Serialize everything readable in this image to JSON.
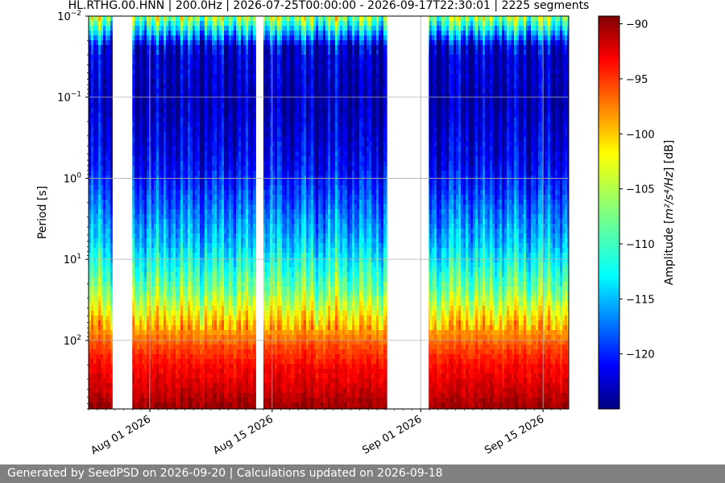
{
  "chart_data": {
    "type": "heatmap",
    "title": "HL.RTHG.00.HNN | 200.0Hz | 2026-07-25T00:00:00 - 2026-09-17T22:30:01 | 2225 segments",
    "ylabel": "Period [s]",
    "y_scale": "log",
    "y_inverted": true,
    "ylim": [
      0.01,
      700
    ],
    "yticks": [
      {
        "value": 0.01,
        "base": "10",
        "exp": "−2"
      },
      {
        "value": 0.1,
        "base": "10",
        "exp": "−1"
      },
      {
        "value": 1,
        "base": "10",
        "exp": "0"
      },
      {
        "value": 10,
        "base": "10",
        "exp": "1"
      },
      {
        "value": 100,
        "base": "10",
        "exp": "2"
      }
    ],
    "xlim": [
      "2026-07-25",
      "2026-09-17T22:30:01"
    ],
    "xticks": [
      {
        "date": "2026-08-01",
        "label": "Aug 01 2026"
      },
      {
        "date": "2026-08-15",
        "label": "Aug 15 2026"
      },
      {
        "date": "2026-09-01",
        "label": "Sep 01 2026"
      },
      {
        "date": "2026-09-15",
        "label": "Sep 15 2026"
      }
    ],
    "data_gaps": [
      {
        "start": "2026-07-27T18:00:00",
        "end": "2026-07-30T00:00:00"
      },
      {
        "start": "2026-08-13T04:00:00",
        "end": "2026-08-14T00:00:00"
      },
      {
        "start": "2026-08-28T04:00:00",
        "end": "2026-09-01T22:00:00"
      }
    ],
    "grid": true,
    "colormap": "jet",
    "colorbar": {
      "label_prefix": "Amplitude [",
      "label_math": "m²/s⁴/Hz",
      "label_suffix": "] [dB]",
      "min": -125,
      "max": -89.3,
      "ticks": [
        -90,
        -95,
        -100,
        -105,
        -110,
        -115,
        -120
      ]
    }
  },
  "footer": {
    "text": "Generated by SeedPSD on 2026-09-20 | Calculations updated on 2026-09-18"
  }
}
